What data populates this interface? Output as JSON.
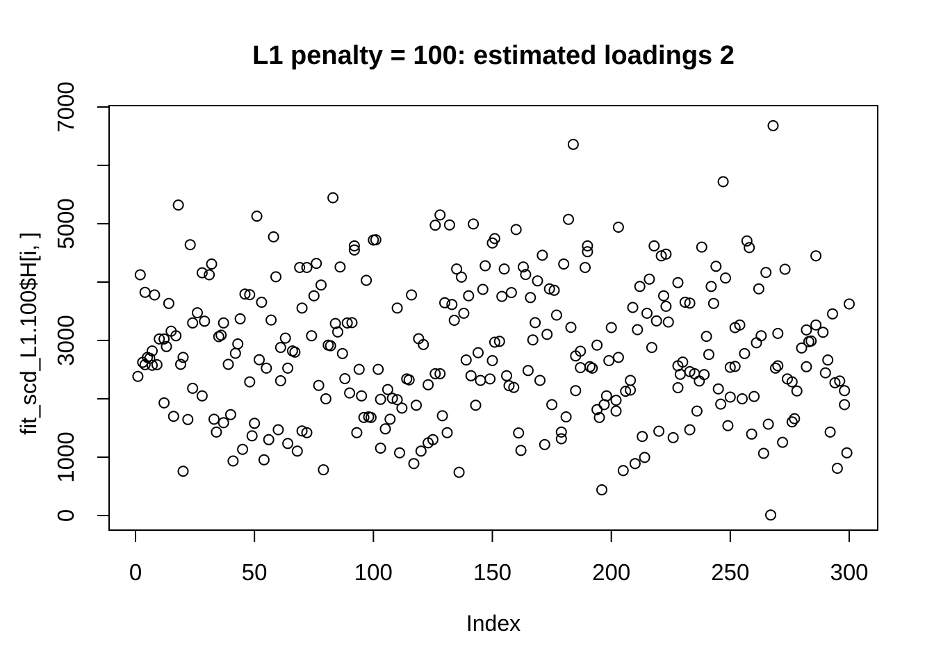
{
  "chart_data": {
    "type": "scatter",
    "title": "L1 penalty = 100: estimated loadings 2",
    "xlabel": "Index",
    "ylabel": "fit_scd_L1.100$H[i, ]",
    "xlim": [
      0,
      300
    ],
    "ylim": [
      0,
      7000
    ],
    "x_ticks": [
      0,
      50,
      100,
      150,
      200,
      250,
      300
    ],
    "y_ticks_all": [
      0,
      1000,
      2000,
      3000,
      4000,
      5000,
      6000,
      7000
    ],
    "y_ticks_labeled": [
      0,
      1000,
      3000,
      5000,
      7000
    ],
    "grid": false,
    "legend": "none",
    "marker": "open-circle",
    "marker_color": "#000000",
    "background_color": "#ffffff",
    "points": [
      [
        1,
        2385
      ],
      [
        2,
        4125
      ],
      [
        3,
        2625
      ],
      [
        4,
        3825
      ],
      [
        4,
        2585
      ],
      [
        5,
        2710
      ],
      [
        6,
        2695
      ],
      [
        7,
        2820
      ],
      [
        7,
        2575
      ],
      [
        8,
        3780
      ],
      [
        9,
        2585
      ],
      [
        10,
        3025
      ],
      [
        12,
        3025
      ],
      [
        12,
        1930
      ],
      [
        13,
        2895
      ],
      [
        14,
        3635
      ],
      [
        15,
        3160
      ],
      [
        16,
        1700
      ],
      [
        17,
        3080
      ],
      [
        18,
        5320
      ],
      [
        19,
        2590
      ],
      [
        20,
        2710
      ],
      [
        20,
        760
      ],
      [
        22,
        1645
      ],
      [
        23,
        4640
      ],
      [
        24,
        3300
      ],
      [
        24,
        2180
      ],
      [
        26,
        3475
      ],
      [
        28,
        4160
      ],
      [
        28,
        2050
      ],
      [
        29,
        3330
      ],
      [
        31,
        4125
      ],
      [
        32,
        4310
      ],
      [
        33,
        1650
      ],
      [
        34,
        1430
      ],
      [
        35,
        3065
      ],
      [
        36,
        3090
      ],
      [
        37,
        3300
      ],
      [
        37,
        1590
      ],
      [
        39,
        2590
      ],
      [
        40,
        1730
      ],
      [
        41,
        935
      ],
      [
        42,
        2780
      ],
      [
        43,
        2940
      ],
      [
        44,
        3370
      ],
      [
        45,
        1135
      ],
      [
        46,
        3795
      ],
      [
        48,
        3785
      ],
      [
        48,
        2290
      ],
      [
        49,
        1365
      ],
      [
        50,
        1580
      ],
      [
        51,
        5130
      ],
      [
        52,
        2670
      ],
      [
        53,
        3655
      ],
      [
        54,
        955
      ],
      [
        55,
        2525
      ],
      [
        56,
        1300
      ],
      [
        57,
        3350
      ],
      [
        58,
        4775
      ],
      [
        59,
        4090
      ],
      [
        60,
        1470
      ],
      [
        61,
        2880
      ],
      [
        61,
        2310
      ],
      [
        63,
        3040
      ],
      [
        64,
        2525
      ],
      [
        64,
        1235
      ],
      [
        66,
        2820
      ],
      [
        67,
        2800
      ],
      [
        68,
        1105
      ],
      [
        69,
        4250
      ],
      [
        70,
        3555
      ],
      [
        70,
        1450
      ],
      [
        72,
        4250
      ],
      [
        72,
        1420
      ],
      [
        74,
        3080
      ],
      [
        75,
        3765
      ],
      [
        76,
        4320
      ],
      [
        77,
        2230
      ],
      [
        78,
        3950
      ],
      [
        79,
        785
      ],
      [
        80,
        2000
      ],
      [
        81,
        2920
      ],
      [
        82,
        2910
      ],
      [
        83,
        5445
      ],
      [
        84,
        3290
      ],
      [
        85,
        3145
      ],
      [
        86,
        4260
      ],
      [
        87,
        2775
      ],
      [
        88,
        2345
      ],
      [
        89,
        3300
      ],
      [
        90,
        2100
      ],
      [
        91,
        3305
      ],
      [
        92,
        4550
      ],
      [
        92,
        4620
      ],
      [
        93,
        1420
      ],
      [
        94,
        2505
      ],
      [
        95,
        2050
      ],
      [
        96,
        1680
      ],
      [
        97,
        4030
      ],
      [
        98,
        1690
      ],
      [
        99,
        1680
      ],
      [
        100,
        4720
      ],
      [
        101,
        4725
      ],
      [
        102,
        2505
      ],
      [
        103,
        1990
      ],
      [
        103,
        1155
      ],
      [
        105,
        1485
      ],
      [
        106,
        2160
      ],
      [
        107,
        1650
      ],
      [
        108,
        2010
      ],
      [
        110,
        3555
      ],
      [
        110,
        1985
      ],
      [
        111,
        1075
      ],
      [
        112,
        1840
      ],
      [
        114,
        2340
      ],
      [
        115,
        2325
      ],
      [
        116,
        3780
      ],
      [
        117,
        890
      ],
      [
        118,
        1890
      ],
      [
        119,
        3030
      ],
      [
        120,
        1105
      ],
      [
        121,
        2930
      ],
      [
        123,
        2240
      ],
      [
        123,
        1245
      ],
      [
        125,
        1300
      ],
      [
        126,
        4975
      ],
      [
        126,
        2430
      ],
      [
        128,
        5150
      ],
      [
        128,
        2430
      ],
      [
        129,
        1710
      ],
      [
        130,
        3645
      ],
      [
        131,
        1420
      ],
      [
        132,
        4980
      ],
      [
        133,
        3615
      ],
      [
        134,
        3345
      ],
      [
        135,
        4225
      ],
      [
        136,
        740
      ],
      [
        137,
        4085
      ],
      [
        138,
        3465
      ],
      [
        139,
        2665
      ],
      [
        140,
        3765
      ],
      [
        141,
        2395
      ],
      [
        142,
        4995
      ],
      [
        143,
        1890
      ],
      [
        144,
        2790
      ],
      [
        145,
        2315
      ],
      [
        146,
        3875
      ],
      [
        147,
        4280
      ],
      [
        149,
        2340
      ],
      [
        150,
        4670
      ],
      [
        150,
        2655
      ],
      [
        151,
        4745
      ],
      [
        151,
        2970
      ],
      [
        153,
        2985
      ],
      [
        154,
        3755
      ],
      [
        155,
        4225
      ],
      [
        156,
        2395
      ],
      [
        157,
        2225
      ],
      [
        158,
        3820
      ],
      [
        159,
        2195
      ],
      [
        160,
        4900
      ],
      [
        161,
        1415
      ],
      [
        162,
        1115
      ],
      [
        163,
        4260
      ],
      [
        164,
        4130
      ],
      [
        165,
        2485
      ],
      [
        166,
        3735
      ],
      [
        167,
        3010
      ],
      [
        168,
        3305
      ],
      [
        169,
        4020
      ],
      [
        170,
        2315
      ],
      [
        171,
        4460
      ],
      [
        172,
        1215
      ],
      [
        173,
        3105
      ],
      [
        174,
        3885
      ],
      [
        175,
        1900
      ],
      [
        176,
        3860
      ],
      [
        177,
        3435
      ],
      [
        179,
        1430
      ],
      [
        179,
        1315
      ],
      [
        180,
        4310
      ],
      [
        181,
        1690
      ],
      [
        182,
        5075
      ],
      [
        183,
        3225
      ],
      [
        184,
        6360
      ],
      [
        185,
        2735
      ],
      [
        185,
        2140
      ],
      [
        187,
        2815
      ],
      [
        187,
        2535
      ],
      [
        189,
        4250
      ],
      [
        190,
        4520
      ],
      [
        190,
        4620
      ],
      [
        191,
        2550
      ],
      [
        192,
        2525
      ],
      [
        194,
        2920
      ],
      [
        194,
        1815
      ],
      [
        195,
        1680
      ],
      [
        196,
        440
      ],
      [
        197,
        1900
      ],
      [
        198,
        2050
      ],
      [
        199,
        2655
      ],
      [
        200,
        3220
      ],
      [
        202,
        1975
      ],
      [
        202,
        1790
      ],
      [
        203,
        4940
      ],
      [
        203,
        2710
      ],
      [
        205,
        770
      ],
      [
        206,
        2130
      ],
      [
        208,
        2315
      ],
      [
        208,
        2150
      ],
      [
        209,
        3565
      ],
      [
        210,
        890
      ],
      [
        211,
        3185
      ],
      [
        212,
        3925
      ],
      [
        213,
        1355
      ],
      [
        214,
        995
      ],
      [
        215,
        3465
      ],
      [
        216,
        4050
      ],
      [
        217,
        2880
      ],
      [
        218,
        4620
      ],
      [
        219,
        3335
      ],
      [
        220,
        1445
      ],
      [
        221,
        4450
      ],
      [
        222,
        3765
      ],
      [
        223,
        4480
      ],
      [
        223,
        3585
      ],
      [
        224,
        3315
      ],
      [
        226,
        1335
      ],
      [
        228,
        3990
      ],
      [
        228,
        2565
      ],
      [
        228,
        2190
      ],
      [
        229,
        2420
      ],
      [
        230,
        2630
      ],
      [
        231,
        3655
      ],
      [
        233,
        3640
      ],
      [
        233,
        2465
      ],
      [
        233,
        1470
      ],
      [
        235,
        2430
      ],
      [
        236,
        1790
      ],
      [
        237,
        2305
      ],
      [
        238,
        4600
      ],
      [
        239,
        2415
      ],
      [
        240,
        3070
      ],
      [
        241,
        2760
      ],
      [
        242,
        3925
      ],
      [
        243,
        3635
      ],
      [
        244,
        4270
      ],
      [
        245,
        2170
      ],
      [
        246,
        1910
      ],
      [
        247,
        5720
      ],
      [
        248,
        4070
      ],
      [
        249,
        1540
      ],
      [
        250,
        2540
      ],
      [
        250,
        2030
      ],
      [
        252,
        3220
      ],
      [
        252,
        2555
      ],
      [
        254,
        3265
      ],
      [
        255,
        2000
      ],
      [
        256,
        2775
      ],
      [
        257,
        4705
      ],
      [
        258,
        4590
      ],
      [
        259,
        1395
      ],
      [
        260,
        2040
      ],
      [
        261,
        2960
      ],
      [
        262,
        3885
      ],
      [
        263,
        3080
      ],
      [
        264,
        1065
      ],
      [
        265,
        4165
      ],
      [
        266,
        1565
      ],
      [
        267,
        10
      ],
      [
        268,
        6680
      ],
      [
        269,
        2525
      ],
      [
        270,
        3120
      ],
      [
        270,
        2565
      ],
      [
        272,
        1255
      ],
      [
        273,
        4220
      ],
      [
        274,
        2340
      ],
      [
        276,
        2290
      ],
      [
        276,
        1605
      ],
      [
        277,
        1660
      ],
      [
        278,
        2135
      ],
      [
        280,
        2870
      ],
      [
        282,
        3180
      ],
      [
        282,
        2550
      ],
      [
        283,
        2980
      ],
      [
        284,
        2990
      ],
      [
        286,
        4450
      ],
      [
        286,
        3265
      ],
      [
        289,
        3140
      ],
      [
        290,
        2445
      ],
      [
        291,
        2665
      ],
      [
        292,
        1430
      ],
      [
        293,
        3455
      ],
      [
        294,
        2275
      ],
      [
        295,
        810
      ],
      [
        296,
        2305
      ],
      [
        298,
        2140
      ],
      [
        298,
        1900
      ],
      [
        299,
        1075
      ],
      [
        300,
        3625
      ]
    ]
  }
}
